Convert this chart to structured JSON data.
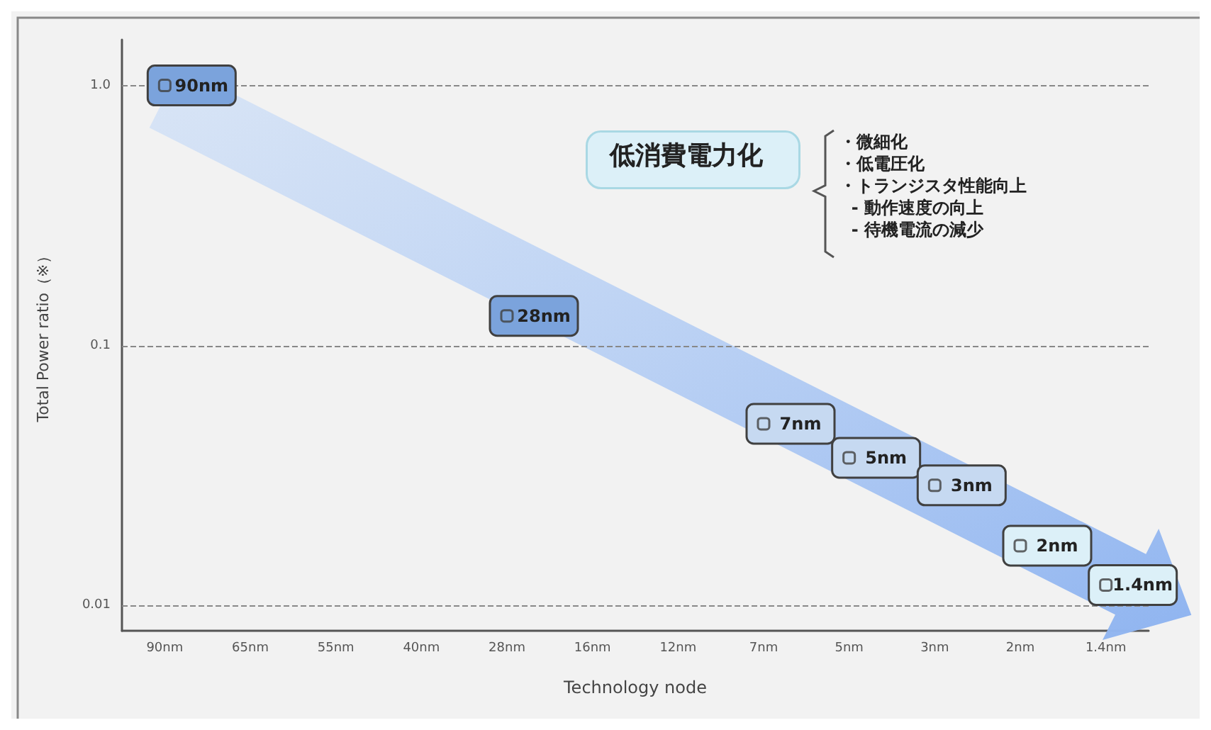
{
  "chart_data": {
    "type": "scatter",
    "xlabel": "Technology node",
    "ylabel": "Total Power ratio（※）",
    "categories": [
      "90nm",
      "65nm",
      "55nm",
      "40nm",
      "28nm",
      "16nm",
      "12nm",
      "7nm",
      "5nm",
      "3nm",
      "2nm",
      "1.4nm"
    ],
    "values": [
      1,
      null,
      null,
      null,
      0.13,
      null,
      null,
      0.05,
      0.037,
      0.029,
      0.017,
      0.012
    ],
    "colors": [
      "#7ba3dc",
      null,
      null,
      null,
      "#7ba3dc",
      null,
      null,
      "#c6d9f1",
      "#c6d9f1",
      "#c6d9f1",
      "#dcf0f8",
      "#dcf0f8"
    ],
    "marker": "square",
    "log": "y",
    "ylim": [
      0.008,
      1.5
    ],
    "yticks": [
      {
        "value": 1,
        "label": "1.0"
      },
      0.1,
      0.01
    ],
    "grid": "y",
    "annotations": [
      "低消費電力化",
      "・微細化",
      "・低電圧化",
      "・トランジスタ性能向上",
      "  - 動作速度の向上",
      "  - 待機電流の減少",
      {
        "text": "90nm",
        "x": "90nm",
        "y": 1
      },
      {
        "text": "28nm",
        "x": "28nm",
        "y": 0.13
      },
      {
        "text": "7nm",
        "x": "7nm",
        "y": 0.05
      },
      {
        "text": "5nm",
        "x": "5nm",
        "y": 0.037
      },
      {
        "text": "3nm",
        "x": "3nm",
        "y": 0.029
      },
      {
        "text": "2nm",
        "x": "2nm",
        "y": 0.017
      },
      {
        "text": "1.4nm",
        "x": "1.4nm",
        "y": 0.012
      }
    ]
  }
}
